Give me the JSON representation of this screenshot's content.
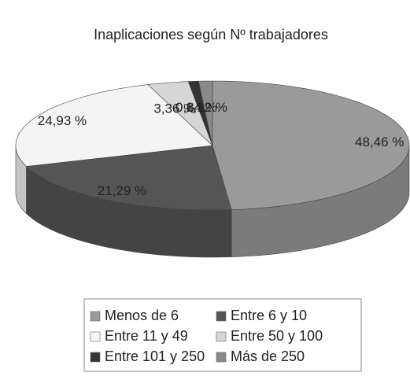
{
  "chart_data": {
    "type": "pie3d",
    "title": "Inaplicaciones según Nº trabajadores",
    "series": [
      {
        "name": "Menos de 6",
        "color": "#9a9a9a"
      },
      {
        "name": "Entre 6 y 10",
        "color": "#555555"
      },
      {
        "name": "Entre 11 y 49",
        "color": "#f4f4f4"
      },
      {
        "name": "Entre 50 y 100",
        "color": "#d6d6d6"
      },
      {
        "name": "Entre 101 y 250",
        "color": "#333333"
      },
      {
        "name": "Más de 250",
        "color": "#8a8a8a"
      }
    ],
    "values": [
      48.46,
      21.29,
      24.93,
      3.36,
      0.84,
      1.12
    ],
    "value_labels": [
      "48,46 %",
      "21,29 %",
      "24,93 %",
      "3,36 %",
      "0,84 %",
      "1,12 %"
    ],
    "legend": "bottom"
  }
}
